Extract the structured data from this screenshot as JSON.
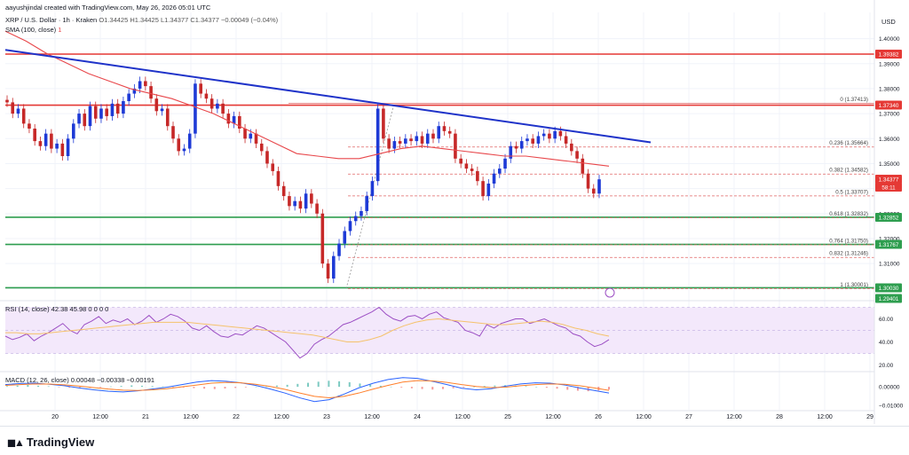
{
  "header": {
    "author_line": "aayushjindal created with TradingView.com, May 26, 2026 05:01 UTC",
    "symbol_line": "XRP / U.S. Dollar · 1h · Kraken",
    "ohlc": "O1.34425 H1.34425 L1.34377 C1.34377 −0.00049 (−0.04%)",
    "sma_label": "SMA (100, close)",
    "sma_value": "1"
  },
  "currency": "USD",
  "brand": "TradingView",
  "colors": {
    "up": "#1e3ad6",
    "down": "#c62828",
    "trend": "#1f33c9",
    "sma": "#e8474b",
    "red_level": "#e53935",
    "green_level": "#2e9e4f",
    "fib": "#e06666",
    "rsi": "#9c4fc4",
    "macd": "#2962ff",
    "signal": "#ff7f2a"
  },
  "chart_data": [
    {
      "type": "candlestick",
      "title": "XRP / U.S. Dollar · 1h · Kraken",
      "y_ticks": [
        "1.40000",
        "1.39000",
        "1.38000",
        "1.37000",
        "1.36000",
        "1.35000",
        "1.34000",
        "1.33000",
        "1.32000",
        "1.31000",
        "1.30000"
      ],
      "ylim": [
        1.2955,
        1.4105
      ],
      "x_ticks": [
        "20",
        "12:00",
        "21",
        "12:00",
        "22",
        "12:00",
        "23",
        "12:00",
        "24",
        "12:00",
        "25",
        "12:00",
        "26",
        "12:00",
        "27",
        "12:00",
        "28",
        "12:00",
        "29"
      ],
      "candles_close": [
        1.3745,
        1.37,
        1.372,
        1.366,
        1.364,
        1.359,
        1.357,
        1.362,
        1.356,
        1.358,
        1.353,
        1.36,
        1.366,
        1.37,
        1.365,
        1.373,
        1.368,
        1.372,
        1.369,
        1.374,
        1.37,
        1.375,
        1.378,
        1.38,
        1.383,
        1.381,
        1.376,
        1.371,
        1.372,
        1.365,
        1.36,
        1.355,
        1.356,
        1.362,
        1.382,
        1.378,
        1.376,
        1.372,
        1.374,
        1.37,
        1.366,
        1.369,
        1.364,
        1.36,
        1.362,
        1.358,
        1.355,
        1.35,
        1.347,
        1.341,
        1.337,
        1.333,
        1.335,
        1.332,
        1.338,
        1.334,
        1.33,
        1.31,
        1.304,
        1.313,
        1.318,
        1.323,
        1.327,
        1.329,
        1.331,
        1.337,
        1.343,
        1.372,
        1.36,
        1.356,
        1.359,
        1.358,
        1.36,
        1.359,
        1.361,
        1.358,
        1.362,
        1.36,
        1.365,
        1.363,
        1.362,
        1.352,
        1.35,
        1.348,
        1.347,
        1.343,
        1.337,
        1.342,
        1.346,
        1.348,
        1.352,
        1.357,
        1.356,
        1.359,
        1.36,
        1.358,
        1.361,
        1.362,
        1.36,
        1.363,
        1.361,
        1.358,
        1.355,
        1.352,
        1.346,
        1.34,
        1.338,
        1.3437
      ],
      "sma_100": [
        1.403,
        1.399,
        1.394,
        1.39,
        1.386,
        1.383,
        1.38,
        1.378,
        1.376,
        1.373,
        1.37,
        1.366,
        1.362,
        1.358,
        1.354,
        1.353,
        1.352,
        1.352,
        1.354,
        1.356,
        1.357,
        1.356,
        1.355,
        1.354,
        1.353,
        1.353,
        1.352,
        1.351,
        1.35,
        1.349
      ],
      "trendline": {
        "x": [
          "start",
          "26 12:00"
        ],
        "y": [
          1.3955,
          1.3585
        ]
      },
      "right_labels": [
        {
          "value": "1.39382",
          "color": "#e53935"
        },
        {
          "value": "1.37340",
          "color": "#e53935"
        },
        {
          "value": "1.34377",
          "color": "#e53935"
        },
        {
          "value": "58:11",
          "color": "#e53935"
        },
        {
          "value": "1.32852",
          "color": "#2e9e4f"
        },
        {
          "value": "1.31767",
          "color": "#2e9e4f"
        },
        {
          "value": "1.30030",
          "color": "#2e9e4f"
        },
        {
          "value": "1.29401",
          "color": "#2e9e4f"
        }
      ],
      "horizontal_levels": [
        {
          "value": 1.39382,
          "color": "#e53935"
        },
        {
          "value": 1.3734,
          "color": "#e53935"
        },
        {
          "value": 1.32852,
          "color": "#2e9e4f"
        },
        {
          "value": 1.31767,
          "color": "#2e9e4f"
        },
        {
          "value": 1.3003,
          "color": "#2e9e4f"
        }
      ],
      "fib_levels": [
        {
          "label": "0 (1.37413)",
          "value": 1.37413
        },
        {
          "label": "0.236 (1.35664)",
          "value": 1.35664
        },
        {
          "label": "0.382 (1.34582)",
          "value": 1.34582
        },
        {
          "label": "0.5 (1.33707)",
          "value": 1.33707
        },
        {
          "label": "0.618 (1.32832)",
          "value": 1.32832
        },
        {
          "label": "0.764 (1.31750)",
          "value": 1.3175
        },
        {
          "label": "0.832 (1.31246)",
          "value": 1.31246
        },
        {
          "label": "1 (1.30001)",
          "value": 1.30001
        }
      ]
    },
    {
      "type": "line",
      "title": "RSI (14, close)",
      "header_values": [
        "42.38",
        "45.98",
        "0",
        "0",
        "0",
        "0"
      ],
      "y_ticks": [
        "60.00",
        "40.00",
        "20.00"
      ],
      "ylim": [
        15,
        75
      ],
      "band": [
        30,
        70
      ],
      "values": [
        45,
        42,
        44,
        47,
        41,
        45,
        48,
        52,
        56,
        50,
        47,
        55,
        58,
        62,
        56,
        59,
        57,
        60,
        55,
        58,
        63,
        57,
        60,
        64,
        62,
        58,
        52,
        50,
        54,
        49,
        45,
        44,
        47,
        46,
        50,
        54,
        52,
        48,
        44,
        40,
        33,
        26,
        30,
        38,
        42,
        45,
        50,
        55,
        57,
        60,
        63,
        66,
        70,
        64,
        60,
        58,
        62,
        63,
        60,
        64,
        66,
        61,
        59,
        57,
        50,
        48,
        45,
        55,
        52,
        56,
        58,
        60,
        60,
        56,
        58,
        60,
        57,
        54,
        52,
        47,
        45,
        40,
        36,
        38,
        42
      ],
      "signal": [
        48,
        48,
        47,
        47,
        48,
        49,
        50,
        51,
        52,
        53,
        54,
        55,
        56,
        57,
        57,
        57,
        57,
        56,
        55,
        54,
        53,
        52,
        51,
        50,
        49,
        48,
        47,
        46,
        44,
        42,
        40,
        40,
        42,
        45,
        50,
        54,
        57,
        59,
        60,
        59,
        58,
        57,
        56,
        55,
        55,
        56,
        57,
        58,
        57,
        55,
        52,
        50,
        47,
        45
      ]
    },
    {
      "type": "bar",
      "title": "MACD (12, 26, close)",
      "header_values": [
        "0.00048",
        "−0.00338",
        "−0.00191"
      ],
      "y_ticks": [
        "0.00000",
        "−0.01000"
      ],
      "ylim": [
        -0.0125,
        0.0078
      ],
      "histogram": [
        0.0004,
        0.0007,
        0.001,
        0.0006,
        0.0003,
        -0.0002,
        -0.0005,
        -0.0008,
        -0.0006,
        -0.0003,
        0.0002,
        0.0005,
        0.0008,
        0.0006,
        0.0004,
        0.0002,
        -0.0001,
        -0.0004,
        -0.0007,
        -0.001,
        -0.0012,
        -0.0009,
        -0.0006,
        -0.0003,
        0.0001,
        0.0004,
        0.0007,
        0.0011,
        0.0016,
        0.0022,
        0.0028,
        0.0033,
        0.003,
        0.0025,
        0.0018,
        0.0012,
        0.0006,
        0.0001,
        -0.0004,
        -0.0008,
        -0.0012,
        -0.0015,
        -0.0012,
        -0.0008,
        -0.0004,
        0.0,
        0.0004,
        0.0007,
        0.0009,
        0.0007,
        0.0004,
        0.0,
        -0.0005,
        -0.001,
        -0.0016,
        -0.0021,
        -0.0024,
        -0.002,
        -0.0015
      ],
      "macd_line": [
        0.0012,
        0.0018,
        0.002,
        0.0014,
        0.0006,
        -0.0006,
        -0.0016,
        -0.0024,
        -0.0028,
        -0.0022,
        -0.0012,
        -0.0002,
        0.0012,
        0.0026,
        0.0034,
        0.003,
        0.0022,
        0.0008,
        -0.0012,
        -0.0034,
        -0.006,
        -0.008,
        -0.007,
        -0.004,
        -0.0006,
        0.002,
        0.004,
        0.005,
        0.0046,
        0.003,
        0.0012,
        -0.0008,
        -0.0016,
        -0.001,
        0.0004,
        0.0016,
        0.0022,
        0.002,
        0.001,
        -0.0006,
        -0.002,
        -0.0034
      ],
      "signal_line": [
        0.0008,
        0.0012,
        0.0016,
        0.0015,
        0.0011,
        0.0004,
        -0.0004,
        -0.0012,
        -0.0018,
        -0.002,
        -0.0016,
        -0.001,
        0.0,
        0.001,
        0.002,
        0.0024,
        0.0022,
        0.0014,
        0.0002,
        -0.0014,
        -0.0034,
        -0.0052,
        -0.006,
        -0.0052,
        -0.0034,
        -0.0012,
        0.0008,
        0.0026,
        0.0034,
        0.0032,
        0.0024,
        0.0012,
        0.0002,
        -0.0004,
        -0.0002,
        0.0006,
        0.0012,
        0.0016,
        0.0014,
        0.0006,
        -0.0006,
        -0.0019
      ]
    }
  ]
}
